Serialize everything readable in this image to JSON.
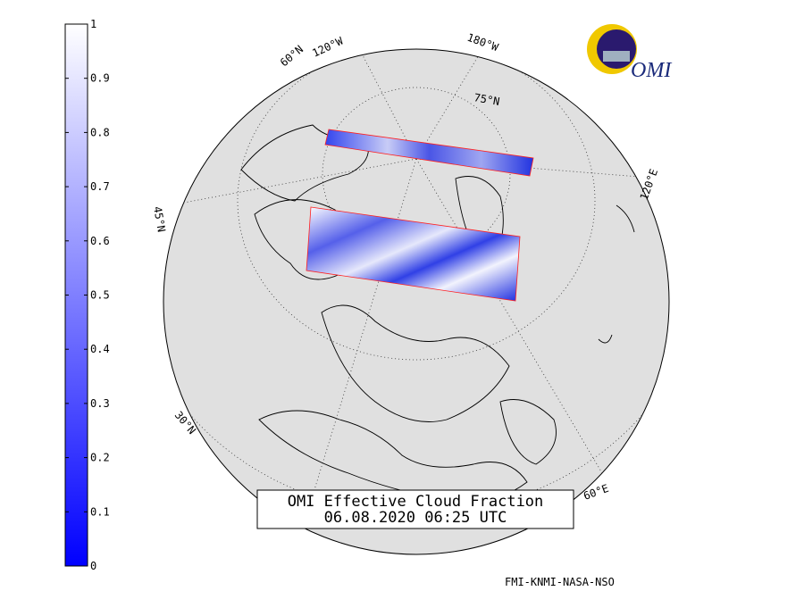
{
  "colorbar": {
    "ticks": [
      0,
      0.1,
      0.2,
      0.3,
      0.4,
      0.5,
      0.6,
      0.7,
      0.8,
      0.9,
      1
    ],
    "lim": [
      0,
      1
    ]
  },
  "title": {
    "line1": "OMI Effective Cloud Fraction",
    "line2": "06.08.2020 06:25 UTC"
  },
  "logo": "OMI",
  "credit": "FMI-KNMI-NASA-NSO",
  "graticule_labels": [
    "60°N",
    "120°W",
    "180°W",
    "75°N",
    "120°E",
    "60°E",
    "30°N",
    "45°N"
  ]
}
